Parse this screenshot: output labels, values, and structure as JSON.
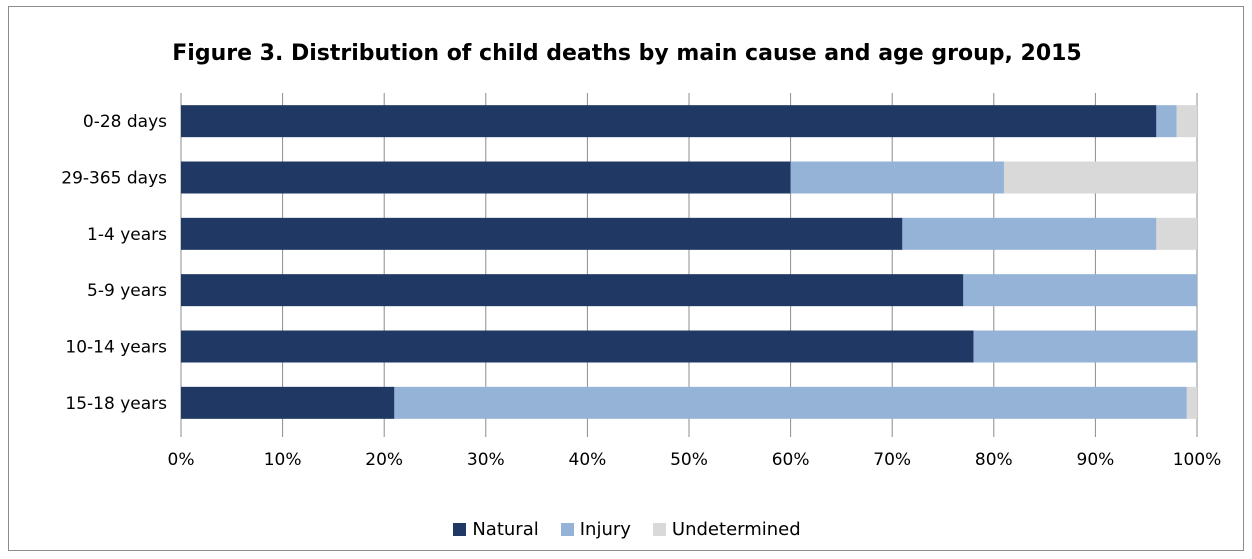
{
  "chart_data": {
    "type": "bar",
    "orientation": "horizontal",
    "stacked": "percent",
    "title": "Figure 3. Distribution of child deaths by main cause and age group, 2015",
    "categories": [
      "0-28 days",
      "29-365 days",
      "1-4 years",
      "5-9 years",
      "10-14 years",
      "15-18 years"
    ],
    "series": [
      {
        "name": "Natural",
        "color": "#1f3864",
        "values": [
          96,
          60,
          71,
          77,
          78,
          21
        ]
      },
      {
        "name": "Injury",
        "color": "#95b3d7",
        "values": [
          2,
          21,
          25,
          23,
          22,
          78
        ]
      },
      {
        "name": "Undetermined",
        "color": "#d9d9d9",
        "values": [
          2,
          19,
          4,
          0,
          0,
          1
        ]
      }
    ],
    "xlim": [
      0,
      100
    ],
    "x_ticks": [
      "0%",
      "10%",
      "20%",
      "30%",
      "40%",
      "50%",
      "60%",
      "70%",
      "80%",
      "90%",
      "100%"
    ],
    "grid": "vertical",
    "legend": "bottom"
  }
}
